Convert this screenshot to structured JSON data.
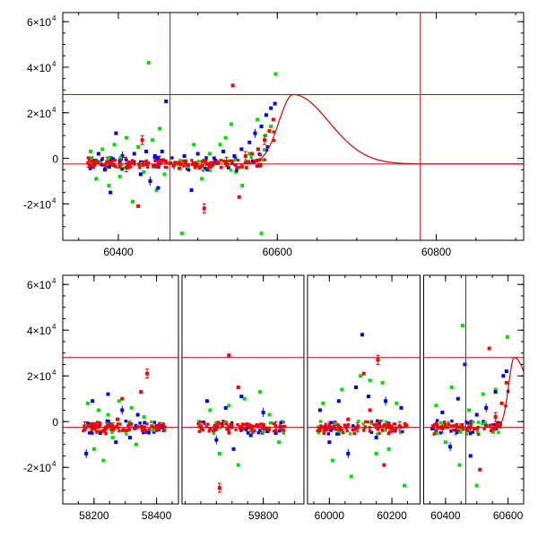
{
  "chart_data": [
    {
      "type": "scatter",
      "title": "",
      "xlabel": "",
      "ylabel": "",
      "xlim": [
        60330,
        60910
      ],
      "ylim": [
        -36000,
        64000
      ],
      "x_ticks": [
        {
          "value": 60400,
          "label": "60400"
        },
        {
          "value": 60600,
          "label": "60600"
        },
        {
          "value": 60800,
          "label": "60800"
        }
      ],
      "y_ticks": [
        {
          "value": -20000,
          "label": "-2×10",
          "exp": "4"
        },
        {
          "value": 0,
          "label": "0",
          "exp": ""
        },
        {
          "value": 20000,
          "label": "2×10",
          "exp": "4"
        },
        {
          "value": 40000,
          "label": "4×10",
          "exp": "4"
        },
        {
          "value": 60000,
          "label": "6×10",
          "exp": "4"
        }
      ],
      "x_segments": [
        [
          60330,
          60910
        ]
      ],
      "colors": {
        "g": "#00e000",
        "b": "#0000ff",
        "r": "#ff0000",
        "line": "#e00000"
      },
      "reference_lines": {
        "h": [
          28000,
          -2500
        ],
        "v": [
          60465,
          60780
        ]
      },
      "model_curve": {
        "baseline": -2500,
        "peak_y": 28000,
        "peak_x": 60620,
        "rise_width": 18,
        "fall_width": 45,
        "x_from": 60540,
        "x_to": 60910
      },
      "series": [
        {
          "color": "g",
          "points": [
            [
              60365,
              3000
            ],
            [
              60372,
              -9000
            ],
            [
              60380,
              4000
            ],
            [
              60388,
              -12000
            ],
            [
              60395,
              6000
            ],
            [
              60402,
              -8000
            ],
            [
              60410,
              9000
            ],
            [
              60418,
              -19000
            ],
            [
              60425,
              5000
            ],
            [
              60432,
              -6000
            ],
            [
              60438,
              42000
            ],
            [
              60443,
              8000
            ],
            [
              60448,
              -14000
            ],
            [
              60452,
              13000
            ],
            [
              60458,
              -7000
            ],
            [
              60480,
              -33000
            ],
            [
              60495,
              6000
            ],
            [
              60505,
              -9000
            ],
            [
              60515,
              2000
            ],
            [
              60528,
              6000
            ],
            [
              60535,
              9000
            ],
            [
              60542,
              15000
            ],
            [
              60548,
              -6000
            ],
            [
              60556,
              -12000
            ],
            [
              60565,
              2000
            ],
            [
              60575,
              17000
            ],
            [
              60580,
              -33000
            ],
            [
              60585,
              10000
            ],
            [
              60592,
              14000
            ],
            [
              60598,
              37000
            ]
          ]
        },
        {
          "color": "b",
          "points": [
            [
              60368,
              -1000
            ],
            [
              60375,
              2000
            ],
            [
              60383,
              -5000
            ],
            [
              60390,
              -15000
            ],
            [
              60397,
              11000
            ],
            [
              60405,
              1000
            ],
            [
              60412,
              -4000
            ],
            [
              60420,
              2000
            ],
            [
              60428,
              -7000
            ],
            [
              60435,
              3000
            ],
            [
              60440,
              -10000
            ],
            [
              60446,
              1000
            ],
            [
              60450,
              -13000
            ],
            [
              60455,
              3000
            ],
            [
              60460,
              25000
            ],
            [
              60470,
              -3000
            ],
            [
              60483,
              1000
            ],
            [
              60492,
              -14000
            ],
            [
              60500,
              2000
            ],
            [
              60512,
              -5000
            ],
            [
              60522,
              -1000
            ],
            [
              60532,
              3000
            ],
            [
              60546,
              1000
            ],
            [
              60555,
              4000
            ],
            [
              60565,
              7000
            ],
            [
              60572,
              11000
            ],
            [
              60580,
              14000
            ],
            [
              60586,
              19000
            ],
            [
              60592,
              22000
            ],
            [
              60597,
              24000
            ]
          ]
        },
        {
          "color": "r",
          "points": [
            [
              60362,
              -2000
            ],
            [
              60370,
              -3000
            ],
            [
              60378,
              -2500
            ],
            [
              60386,
              -1500
            ],
            [
              60394,
              -3000
            ],
            [
              60402,
              -2000
            ],
            [
              60410,
              -4000
            ],
            [
              60418,
              -2000
            ],
            [
              60425,
              -21000
            ],
            [
              60430,
              8000
            ],
            [
              60436,
              -2500
            ],
            [
              60444,
              -3500
            ],
            [
              60452,
              -1000
            ],
            [
              60460,
              -2000
            ],
            [
              60470,
              -3000
            ],
            [
              60478,
              -2500
            ],
            [
              60488,
              -3000
            ],
            [
              60498,
              -2000
            ],
            [
              60508,
              -22000
            ],
            [
              60516,
              -3000
            ],
            [
              60526,
              -2000
            ],
            [
              60536,
              -1500
            ],
            [
              60544,
              32000
            ],
            [
              60552,
              -17000
            ],
            [
              60560,
              1000
            ],
            [
              60568,
              2000
            ],
            [
              60576,
              4000
            ],
            [
              60584,
              8000
            ],
            [
              60590,
              12000
            ],
            [
              60595,
              17000
            ]
          ]
        }
      ]
    },
    {
      "type": "scatter",
      "title": "",
      "xlabel": "",
      "ylabel": "",
      "xlim": [
        58100,
        60650
      ],
      "ylim": [
        -36000,
        64000
      ],
      "x_ticks": [
        {
          "value": 58200,
          "label": "58200"
        },
        {
          "value": 58400,
          "label": "58400"
        },
        {
          "value": 59800,
          "label": "59800"
        },
        {
          "value": 60000,
          "label": "60000"
        },
        {
          "value": 60200,
          "label": "60200"
        },
        {
          "value": 60400,
          "label": "60400"
        },
        {
          "value": 60600,
          "label": "60600"
        }
      ],
      "y_ticks": [
        {
          "value": -20000,
          "label": "-2×10",
          "exp": "4"
        },
        {
          "value": 0,
          "label": "0",
          "exp": ""
        },
        {
          "value": 20000,
          "label": "2×10",
          "exp": "4"
        },
        {
          "value": 40000,
          "label": "4×10",
          "exp": "4"
        },
        {
          "value": 60000,
          "label": "6×10",
          "exp": "4"
        }
      ],
      "x_segments": [
        [
          58100,
          58470
        ],
        [
          59540,
          59930
        ],
        [
          59930,
          60290
        ],
        [
          60330,
          60650
        ]
      ],
      "colors": {
        "g": "#00e000",
        "b": "#0000ff",
        "r": "#ff0000",
        "line": "#e00000"
      },
      "reference_lines": {
        "h": [
          28000,
          -2500
        ],
        "v": [
          60465
        ]
      },
      "model_curve": {
        "baseline": -2500,
        "peak_y": 28000,
        "peak_x": 60620,
        "rise_width": 18,
        "fall_width": 45,
        "x_from": 60540,
        "x_to": 60650
      },
      "series": [
        {
          "color": "g",
          "points": [
            [
              58180,
              8000
            ],
            [
              58200,
              -12000
            ],
            [
              58215,
              5000
            ],
            [
              58230,
              -17000
            ],
            [
              58245,
              3000
            ],
            [
              58260,
              -7000
            ],
            [
              58280,
              9000
            ],
            [
              58300,
              -4000
            ],
            [
              58320,
              6000
            ],
            [
              58335,
              -10000
            ],
            [
              58360,
              2000
            ],
            [
              58390,
              -3000
            ],
            [
              59630,
              5000
            ],
            [
              59660,
              -14000
            ],
            [
              59690,
              7000
            ],
            [
              59720,
              -19000
            ],
            [
              59740,
              10000
            ],
            [
              59760,
              -4000
            ],
            [
              59790,
              13000
            ],
            [
              59820,
              3000
            ],
            [
              59850,
              -9000
            ],
            [
              59980,
              8000
            ],
            [
              60010,
              -17000
            ],
            [
              60040,
              14000
            ],
            [
              60070,
              -24000
            ],
            [
              60100,
              20000
            ],
            [
              60130,
              18000
            ],
            [
              60150,
              -14000
            ],
            [
              60170,
              17000
            ],
            [
              60190,
              -12000
            ],
            [
              60215,
              8000
            ],
            [
              60240,
              -28000
            ],
            [
              60370,
              7000
            ],
            [
              60400,
              -9000
            ],
            [
              60420,
              15000
            ],
            [
              60445,
              -19000
            ],
            [
              60455,
              42000
            ],
            [
              60475,
              5000
            ],
            [
              60500,
              -28000
            ],
            [
              60520,
              12000
            ],
            [
              60560,
              14000
            ],
            [
              60598,
              37000
            ]
          ]
        },
        {
          "color": "b",
          "points": [
            [
              58175,
              -14000
            ],
            [
              58195,
              9000
            ],
            [
              58220,
              -5000
            ],
            [
              58245,
              12000
            ],
            [
              58270,
              -9000
            ],
            [
              58290,
              5000
            ],
            [
              58315,
              -7000
            ],
            [
              58340,
              3000
            ],
            [
              58365,
              -4000
            ],
            [
              59620,
              9000
            ],
            [
              59650,
              -8000
            ],
            [
              59680,
              6000
            ],
            [
              59705,
              -12000
            ],
            [
              59730,
              11000
            ],
            [
              59760,
              -6000
            ],
            [
              59800,
              4000
            ],
            [
              59840,
              -5000
            ],
            [
              59970,
              5000
            ],
            [
              60000,
              -9000
            ],
            [
              60030,
              9000
            ],
            [
              60060,
              -14000
            ],
            [
              60085,
              15000
            ],
            [
              60105,
              38000
            ],
            [
              60125,
              11000
            ],
            [
              60150,
              -7000
            ],
            [
              60180,
              9000
            ],
            [
              60210,
              -4000
            ],
            [
              60230,
              6000
            ],
            [
              60360,
              -3000
            ],
            [
              60390,
              4000
            ],
            [
              60415,
              -11000
            ],
            [
              60440,
              10000
            ],
            [
              60462,
              25000
            ],
            [
              60480,
              -15000
            ],
            [
              60500,
              3000
            ],
            [
              60530,
              6000
            ],
            [
              60560,
              13000
            ],
            [
              60585,
              20000
            ],
            [
              60595,
              22000
            ]
          ]
        },
        {
          "color": "r",
          "points": [
            [
              58170,
              -2000
            ],
            [
              58185,
              -1000
            ],
            [
              58200,
              -3000
            ],
            [
              58215,
              -2000
            ],
            [
              58230,
              -4000
            ],
            [
              58245,
              -1500
            ],
            [
              58260,
              -2500
            ],
            [
              58275,
              1000
            ],
            [
              58290,
              10000
            ],
            [
              58310,
              -2000
            ],
            [
              58330,
              -3000
            ],
            [
              58350,
              13000
            ],
            [
              58370,
              21000
            ],
            [
              58385,
              -2000
            ],
            [
              58400,
              -3000
            ],
            [
              58420,
              -2500
            ],
            [
              59600,
              -2000
            ],
            [
              59630,
              -3000
            ],
            [
              59660,
              -29000
            ],
            [
              59690,
              29000
            ],
            [
              59720,
              15000
            ],
            [
              59750,
              -2500
            ],
            [
              59780,
              -1500
            ],
            [
              59810,
              -3000
            ],
            [
              59840,
              -2000
            ],
            [
              59865,
              -4000
            ],
            [
              59970,
              -3000
            ],
            [
              60000,
              -2000
            ],
            [
              60030,
              -4000
            ],
            [
              60060,
              1000
            ],
            [
              60090,
              -2500
            ],
            [
              60110,
              21000
            ],
            [
              60130,
              5000
            ],
            [
              60155,
              27000
            ],
            [
              60175,
              -19000
            ],
            [
              60200,
              -3000
            ],
            [
              60225,
              -2000
            ],
            [
              60245,
              -1500
            ],
            [
              60360,
              -2000
            ],
            [
              60390,
              -3000
            ],
            [
              60420,
              -2000
            ],
            [
              60450,
              -1500
            ],
            [
              60480,
              -2500
            ],
            [
              60510,
              -21000
            ],
            [
              60540,
              32000
            ],
            [
              60560,
              2000
            ],
            [
              60580,
              8000
            ],
            [
              60595,
              17000
            ]
          ]
        }
      ]
    }
  ]
}
